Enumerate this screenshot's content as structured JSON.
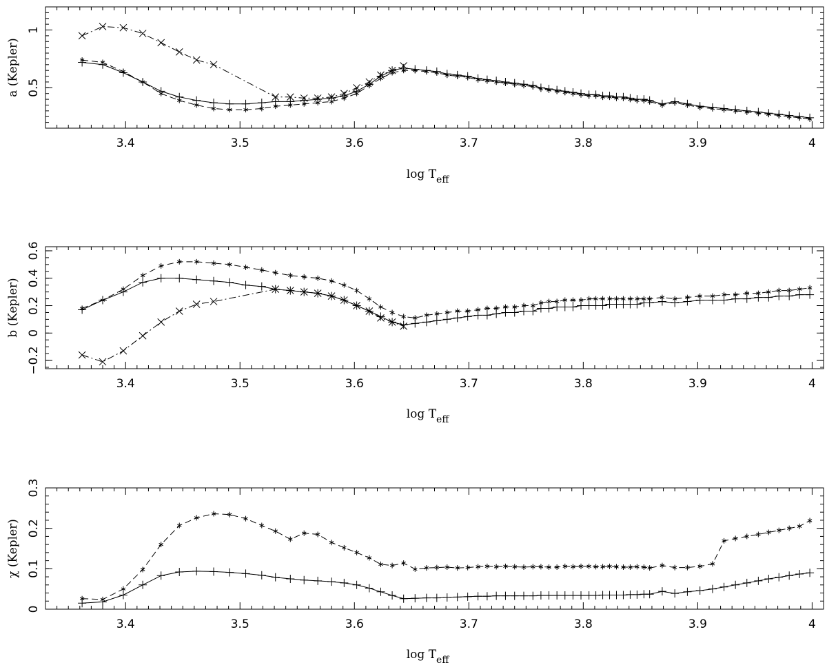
{
  "chart_data": [
    {
      "type": "line",
      "ylabel": "a (Kepler)",
      "xlabel": "log T",
      "xlabel_sub": "eff",
      "xlim": [
        3.33,
        4.01
      ],
      "ylim": [
        0.15,
        1.2
      ],
      "xticks": [
        3.4,
        3.5,
        3.6,
        3.7,
        3.8,
        3.9,
        4.0
      ],
      "xtick_labels": [
        "3.4",
        "3.5",
        "3.6",
        "3.7",
        "3.8",
        "3.9",
        "4"
      ],
      "yticks": [
        0.5,
        1.0
      ],
      "ytick_labels": [
        "0.5",
        "1"
      ],
      "series": [
        {
          "name": "plus-solid",
          "marker": "+",
          "line": "solid",
          "x": [
            3.362,
            3.38,
            3.398,
            3.415,
            3.431,
            3.447,
            3.462,
            3.477,
            3.491,
            3.505,
            3.519,
            3.531,
            3.544,
            3.556,
            3.568,
            3.58,
            3.591,
            3.602,
            3.613,
            3.623,
            3.633,
            3.643,
            3.653,
            3.663,
            3.672,
            3.681,
            3.69,
            3.699,
            3.708,
            3.716,
            3.724,
            3.732,
            3.74,
            3.748,
            3.756,
            3.763,
            3.77,
            3.777,
            3.784,
            3.791,
            3.798,
            3.805,
            3.811,
            3.817,
            3.823,
            3.829,
            3.835,
            3.841,
            3.847,
            3.853,
            3.858,
            3.869,
            3.88,
            3.891,
            3.902,
            3.913,
            3.923,
            3.933,
            3.943,
            3.953,
            3.962,
            3.971,
            3.98,
            3.989,
            3.998
          ],
          "y": [
            0.72,
            0.7,
            0.63,
            0.55,
            0.47,
            0.42,
            0.39,
            0.37,
            0.36,
            0.36,
            0.37,
            0.38,
            0.38,
            0.39,
            0.4,
            0.41,
            0.43,
            0.47,
            0.53,
            0.6,
            0.65,
            0.67,
            0.66,
            0.65,
            0.64,
            0.62,
            0.61,
            0.6,
            0.58,
            0.57,
            0.56,
            0.55,
            0.54,
            0.53,
            0.52,
            0.5,
            0.49,
            0.48,
            0.47,
            0.46,
            0.45,
            0.44,
            0.44,
            0.43,
            0.43,
            0.42,
            0.42,
            0.41,
            0.4,
            0.4,
            0.39,
            0.36,
            0.38,
            0.36,
            0.34,
            0.33,
            0.32,
            0.31,
            0.3,
            0.29,
            0.28,
            0.27,
            0.26,
            0.25,
            0.24
          ]
        },
        {
          "name": "star-dashed",
          "marker": "*",
          "line": "dashed",
          "x": [
            3.362,
            3.38,
            3.398,
            3.415,
            3.431,
            3.447,
            3.462,
            3.477,
            3.491,
            3.505,
            3.519,
            3.531,
            3.544,
            3.556,
            3.568,
            3.58,
            3.591,
            3.602,
            3.613,
            3.623,
            3.633,
            3.643,
            3.653,
            3.663,
            3.672,
            3.681,
            3.69,
            3.699,
            3.708,
            3.716,
            3.724,
            3.732,
            3.74,
            3.748,
            3.756,
            3.763,
            3.77,
            3.777,
            3.784,
            3.791,
            3.798,
            3.805,
            3.811,
            3.817,
            3.823,
            3.829,
            3.835,
            3.841,
            3.847,
            3.853,
            3.858,
            3.869,
            3.88,
            3.891,
            3.902,
            3.913,
            3.923,
            3.933,
            3.943,
            3.953,
            3.962,
            3.971,
            3.98,
            3.989,
            3.998
          ],
          "y": [
            0.74,
            0.72,
            0.64,
            0.55,
            0.45,
            0.39,
            0.35,
            0.32,
            0.31,
            0.31,
            0.32,
            0.34,
            0.35,
            0.36,
            0.37,
            0.38,
            0.41,
            0.45,
            0.52,
            0.58,
            0.63,
            0.65,
            0.65,
            0.64,
            0.63,
            0.61,
            0.6,
            0.59,
            0.57,
            0.56,
            0.55,
            0.54,
            0.53,
            0.52,
            0.51,
            0.49,
            0.48,
            0.47,
            0.46,
            0.45,
            0.44,
            0.43,
            0.43,
            0.42,
            0.42,
            0.41,
            0.41,
            0.4,
            0.39,
            0.39,
            0.38,
            0.35,
            0.37,
            0.35,
            0.33,
            0.32,
            0.31,
            0.3,
            0.29,
            0.28,
            0.27,
            0.26,
            0.25,
            0.24,
            0.23
          ]
        },
        {
          "name": "x-dashdot",
          "marker": "x",
          "line": "dashdot",
          "x": [
            3.362,
            3.38,
            3.398,
            3.415,
            3.431,
            3.447,
            3.462,
            3.477,
            3.531,
            3.544,
            3.556,
            3.568,
            3.58,
            3.591,
            3.602,
            3.613,
            3.623,
            3.633,
            3.643
          ],
          "y": [
            0.95,
            1.03,
            1.02,
            0.97,
            0.89,
            0.81,
            0.74,
            0.7,
            0.42,
            0.42,
            0.41,
            0.41,
            0.42,
            0.45,
            0.5,
            0.55,
            0.61,
            0.65,
            0.69
          ]
        }
      ]
    },
    {
      "type": "line",
      "ylabel": "b (Kepler)",
      "xlabel": "log T",
      "xlabel_sub": "eff",
      "xlim": [
        3.33,
        4.01
      ],
      "ylim": [
        -0.26,
        0.63
      ],
      "xticks": [
        3.4,
        3.5,
        3.6,
        3.7,
        3.8,
        3.9,
        4.0
      ],
      "xtick_labels": [
        "3.4",
        "3.5",
        "3.6",
        "3.7",
        "3.8",
        "3.9",
        "4"
      ],
      "yticks": [
        -0.2,
        0.0,
        0.2,
        0.4,
        0.6
      ],
      "ytick_labels": [
        "−0.2",
        "0",
        "0.2",
        "0.4",
        "0.6"
      ],
      "series": [
        {
          "name": "plus-solid",
          "marker": "+",
          "line": "solid",
          "x": [
            3.362,
            3.38,
            3.398,
            3.415,
            3.431,
            3.447,
            3.462,
            3.477,
            3.491,
            3.505,
            3.519,
            3.531,
            3.544,
            3.556,
            3.568,
            3.58,
            3.591,
            3.602,
            3.613,
            3.623,
            3.633,
            3.643,
            3.653,
            3.663,
            3.672,
            3.681,
            3.69,
            3.699,
            3.708,
            3.716,
            3.724,
            3.732,
            3.74,
            3.748,
            3.756,
            3.763,
            3.77,
            3.777,
            3.784,
            3.791,
            3.798,
            3.805,
            3.811,
            3.817,
            3.823,
            3.829,
            3.835,
            3.841,
            3.847,
            3.853,
            3.858,
            3.869,
            3.88,
            3.891,
            3.902,
            3.913,
            3.923,
            3.933,
            3.943,
            3.953,
            3.962,
            3.971,
            3.98,
            3.989,
            3.998
          ],
          "y": [
            0.17,
            0.24,
            0.3,
            0.37,
            0.4,
            0.4,
            0.39,
            0.38,
            0.37,
            0.35,
            0.34,
            0.32,
            0.31,
            0.3,
            0.29,
            0.27,
            0.24,
            0.2,
            0.16,
            0.12,
            0.08,
            0.06,
            0.07,
            0.08,
            0.09,
            0.1,
            0.11,
            0.12,
            0.13,
            0.13,
            0.14,
            0.15,
            0.15,
            0.16,
            0.16,
            0.18,
            0.18,
            0.19,
            0.19,
            0.19,
            0.2,
            0.2,
            0.2,
            0.2,
            0.21,
            0.21,
            0.21,
            0.21,
            0.21,
            0.22,
            0.22,
            0.23,
            0.22,
            0.23,
            0.24,
            0.24,
            0.24,
            0.25,
            0.25,
            0.26,
            0.26,
            0.27,
            0.27,
            0.28,
            0.28
          ]
        },
        {
          "name": "star-dashed",
          "marker": "*",
          "line": "dashed",
          "x": [
            3.362,
            3.38,
            3.398,
            3.415,
            3.431,
            3.447,
            3.462,
            3.477,
            3.491,
            3.505,
            3.519,
            3.531,
            3.544,
            3.556,
            3.568,
            3.58,
            3.591,
            3.602,
            3.613,
            3.623,
            3.633,
            3.643,
            3.653,
            3.663,
            3.672,
            3.681,
            3.69,
            3.699,
            3.708,
            3.716,
            3.724,
            3.732,
            3.74,
            3.748,
            3.756,
            3.763,
            3.77,
            3.777,
            3.784,
            3.791,
            3.798,
            3.805,
            3.811,
            3.817,
            3.823,
            3.829,
            3.835,
            3.841,
            3.847,
            3.853,
            3.858,
            3.869,
            3.88,
            3.891,
            3.902,
            3.913,
            3.923,
            3.933,
            3.943,
            3.953,
            3.962,
            3.971,
            3.98,
            3.989,
            3.998
          ],
          "y": [
            0.18,
            0.24,
            0.32,
            0.42,
            0.49,
            0.52,
            0.52,
            0.51,
            0.5,
            0.48,
            0.46,
            0.44,
            0.42,
            0.41,
            0.4,
            0.38,
            0.35,
            0.31,
            0.25,
            0.19,
            0.15,
            0.12,
            0.11,
            0.13,
            0.14,
            0.15,
            0.16,
            0.16,
            0.17,
            0.18,
            0.18,
            0.19,
            0.19,
            0.2,
            0.2,
            0.22,
            0.23,
            0.23,
            0.24,
            0.24,
            0.24,
            0.25,
            0.25,
            0.25,
            0.25,
            0.25,
            0.25,
            0.25,
            0.25,
            0.25,
            0.25,
            0.26,
            0.25,
            0.26,
            0.27,
            0.27,
            0.28,
            0.28,
            0.29,
            0.29,
            0.3,
            0.31,
            0.31,
            0.32,
            0.33
          ]
        },
        {
          "name": "x-dashdot",
          "marker": "x",
          "line": "dashdot",
          "x": [
            3.362,
            3.38,
            3.398,
            3.415,
            3.431,
            3.447,
            3.462,
            3.477,
            3.531,
            3.544,
            3.556,
            3.568,
            3.58,
            3.591,
            3.602,
            3.613,
            3.623,
            3.633,
            3.643
          ],
          "y": [
            -0.16,
            -0.21,
            -0.13,
            -0.02,
            0.08,
            0.16,
            0.21,
            0.23,
            0.32,
            0.31,
            0.3,
            0.29,
            0.27,
            0.24,
            0.2,
            0.16,
            0.11,
            0.08,
            0.05
          ]
        }
      ]
    },
    {
      "type": "line",
      "ylabel": "χ (Kepler)",
      "xlabel": "log T",
      "xlabel_sub": "eff",
      "xlim": [
        3.33,
        4.01
      ],
      "ylim": [
        0.0,
        0.3
      ],
      "xticks": [
        3.4,
        3.5,
        3.6,
        3.7,
        3.8,
        3.9,
        4.0
      ],
      "xtick_labels": [
        "3.4",
        "3.5",
        "3.6",
        "3.7",
        "3.8",
        "3.9",
        "4"
      ],
      "yticks": [
        0.0,
        0.1,
        0.2,
        0.3
      ],
      "ytick_labels": [
        "0",
        "0.1",
        "0.2",
        "0.3"
      ],
      "series": [
        {
          "name": "plus-solid",
          "marker": "+",
          "line": "solid",
          "x": [
            3.362,
            3.38,
            3.398,
            3.415,
            3.431,
            3.447,
            3.462,
            3.477,
            3.491,
            3.505,
            3.519,
            3.531,
            3.544,
            3.556,
            3.568,
            3.58,
            3.591,
            3.602,
            3.613,
            3.623,
            3.633,
            3.643,
            3.653,
            3.663,
            3.672,
            3.681,
            3.69,
            3.699,
            3.708,
            3.716,
            3.724,
            3.732,
            3.74,
            3.748,
            3.756,
            3.763,
            3.77,
            3.777,
            3.784,
            3.791,
            3.798,
            3.805,
            3.811,
            3.817,
            3.823,
            3.829,
            3.835,
            3.841,
            3.847,
            3.853,
            3.858,
            3.869,
            3.88,
            3.891,
            3.902,
            3.913,
            3.923,
            3.933,
            3.943,
            3.953,
            3.962,
            3.971,
            3.98,
            3.989,
            3.998
          ],
          "y": [
            0.015,
            0.018,
            0.035,
            0.06,
            0.083,
            0.092,
            0.094,
            0.093,
            0.091,
            0.088,
            0.084,
            0.079,
            0.075,
            0.072,
            0.07,
            0.068,
            0.065,
            0.06,
            0.052,
            0.043,
            0.034,
            0.026,
            0.027,
            0.028,
            0.028,
            0.029,
            0.03,
            0.031,
            0.032,
            0.032,
            0.033,
            0.033,
            0.033,
            0.033,
            0.033,
            0.034,
            0.034,
            0.034,
            0.034,
            0.034,
            0.034,
            0.034,
            0.034,
            0.035,
            0.035,
            0.035,
            0.035,
            0.036,
            0.036,
            0.037,
            0.037,
            0.044,
            0.039,
            0.043,
            0.046,
            0.05,
            0.055,
            0.06,
            0.065,
            0.07,
            0.075,
            0.079,
            0.083,
            0.087,
            0.09
          ]
        },
        {
          "name": "star-dashed",
          "marker": "*",
          "line": "dashed",
          "x": [
            3.362,
            3.38,
            3.398,
            3.415,
            3.431,
            3.447,
            3.462,
            3.477,
            3.491,
            3.505,
            3.519,
            3.531,
            3.544,
            3.556,
            3.568,
            3.58,
            3.591,
            3.602,
            3.613,
            3.623,
            3.633,
            3.643,
            3.653,
            3.663,
            3.672,
            3.681,
            3.69,
            3.699,
            3.708,
            3.716,
            3.724,
            3.732,
            3.74,
            3.748,
            3.756,
            3.763,
            3.77,
            3.777,
            3.784,
            3.791,
            3.798,
            3.805,
            3.811,
            3.817,
            3.823,
            3.829,
            3.835,
            3.841,
            3.847,
            3.853,
            3.858,
            3.869,
            3.88,
            3.891,
            3.902,
            3.913,
            3.923,
            3.933,
            3.943,
            3.953,
            3.962,
            3.971,
            3.98,
            3.989,
            3.998
          ],
          "y": [
            0.026,
            0.024,
            0.05,
            0.098,
            0.16,
            0.207,
            0.226,
            0.236,
            0.234,
            0.224,
            0.207,
            0.193,
            0.173,
            0.188,
            0.185,
            0.165,
            0.152,
            0.14,
            0.127,
            0.111,
            0.108,
            0.114,
            0.099,
            0.102,
            0.103,
            0.104,
            0.102,
            0.103,
            0.105,
            0.106,
            0.105,
            0.106,
            0.105,
            0.104,
            0.105,
            0.105,
            0.104,
            0.104,
            0.106,
            0.105,
            0.106,
            0.106,
            0.105,
            0.105,
            0.106,
            0.105,
            0.104,
            0.104,
            0.105,
            0.104,
            0.102,
            0.108,
            0.103,
            0.103,
            0.106,
            0.112,
            0.169,
            0.175,
            0.18,
            0.185,
            0.19,
            0.195,
            0.2,
            0.205,
            0.219
          ]
        }
      ]
    }
  ]
}
